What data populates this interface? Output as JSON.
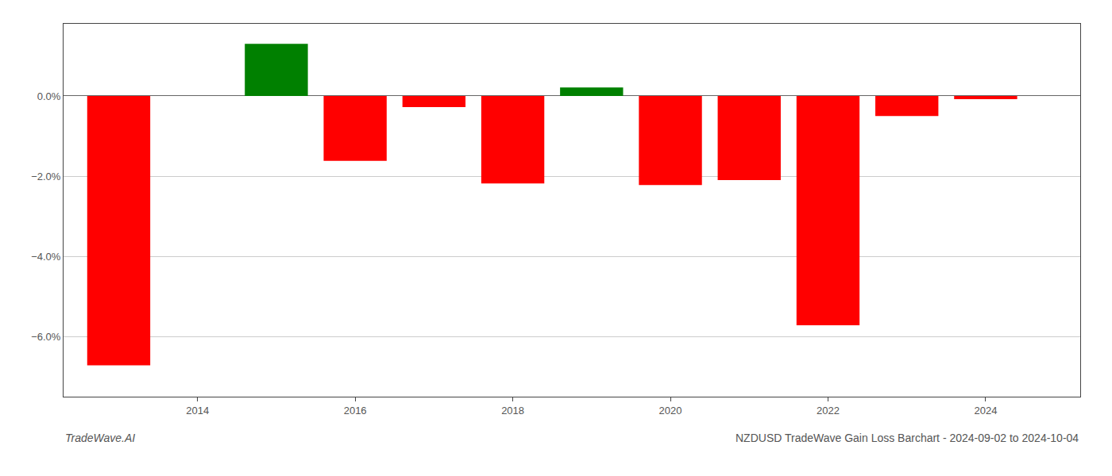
{
  "chart_data": {
    "type": "bar",
    "title": "NZDUSD TradeWave Gain Loss Barchart - 2024-09-02 to 2024-10-04",
    "annotations": [
      "TradeWave.AI"
    ],
    "x": [
      2013,
      2015,
      2016,
      2017,
      2018,
      2019,
      2020,
      2021,
      2022,
      2023,
      2024
    ],
    "values": [
      -6.72,
      1.3,
      -1.62,
      -0.28,
      -2.18,
      0.21,
      -2.22,
      -2.1,
      -5.72,
      -0.5,
      -0.08
    ],
    "colors": [
      "#ff0000",
      "#008000",
      "#ff0000",
      "#ff0000",
      "#ff0000",
      "#008000",
      "#ff0000",
      "#ff0000",
      "#ff0000",
      "#ff0000",
      "#ff0000"
    ],
    "xlim": [
      2012.3,
      2025.2
    ],
    "xticks": [
      2014,
      2016,
      2018,
      2020,
      2022,
      2024
    ],
    "ylim": [
      -7.5,
      1.8
    ],
    "yticks": [
      {
        "value": 0.0,
        "label": "0.0%"
      },
      {
        "value": -2.0,
        "label": "−2.0%"
      },
      {
        "value": -4.0,
        "label": "−4.0%"
      },
      {
        "value": -6.0,
        "label": "−6.0%"
      }
    ],
    "grid": true
  }
}
